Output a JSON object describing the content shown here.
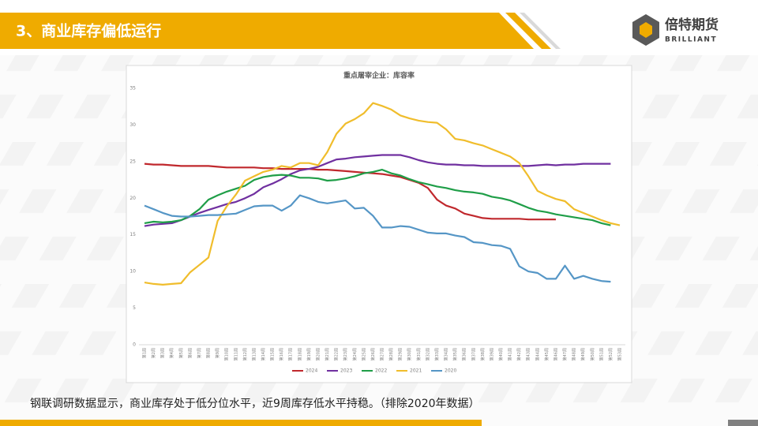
{
  "header": {
    "title": "3、商业库存偏低运行"
  },
  "logo": {
    "name": "倍特期货",
    "en": "BRILLIANT"
  },
  "caption": "钢联调研数据显示，商业库存处于低分位水平，近9周库存低水平持稳。（排除2020年数据）",
  "chart_data": {
    "type": "line",
    "title": "重点屠宰企业：库容率",
    "categories": [
      "第1周",
      "第2周",
      "第3周",
      "第4周",
      "第5周",
      "第6周",
      "第7周",
      "第8周",
      "第9周",
      "第10周",
      "第11周",
      "第12周",
      "第13周",
      "第14周",
      "第15周",
      "第16周",
      "第17周",
      "第18周",
      "第19周",
      "第20周",
      "第21周",
      "第22周",
      "第23周",
      "第24周",
      "第25周",
      "第26周",
      "第27周",
      "第28周",
      "第29周",
      "第30周",
      "第31周",
      "第32周",
      "第33周",
      "第34周",
      "第35周",
      "第36周",
      "第37周",
      "第38周",
      "第39周",
      "第40周",
      "第41周",
      "第42周",
      "第43周",
      "第44周",
      "第45周",
      "第46周",
      "第47周",
      "第48周",
      "第49周",
      "第50周",
      "第51周",
      "第52周",
      "第53周"
    ],
    "series": [
      {
        "name": "2024",
        "color": "#c0282d",
        "values": [
          24.7,
          24.6,
          24.6,
          24.5,
          24.4,
          24.4,
          24.4,
          24.4,
          24.3,
          24.2,
          24.2,
          24.2,
          24.2,
          24.1,
          24.1,
          24.0,
          24.0,
          24.0,
          24.0,
          23.9,
          23.9,
          23.8,
          23.7,
          23.6,
          23.5,
          23.4,
          23.3,
          23.1,
          22.9,
          22.5,
          22.1,
          21.4,
          19.8,
          19.0,
          18.6,
          17.9,
          17.6,
          17.3,
          17.2,
          17.2,
          17.2,
          17.2,
          17.1,
          17.1,
          17.1,
          17.1,
          null,
          null,
          null,
          null,
          null,
          null,
          null
        ]
      },
      {
        "name": "2023",
        "color": "#7030a0",
        "values": [
          16.2,
          16.4,
          16.5,
          16.6,
          17.0,
          17.5,
          18.0,
          18.4,
          18.8,
          19.2,
          19.5,
          20.0,
          20.6,
          21.5,
          22.0,
          22.6,
          23.3,
          23.8,
          24.0,
          24.3,
          24.8,
          25.3,
          25.4,
          25.6,
          25.7,
          25.8,
          25.9,
          25.9,
          25.9,
          25.6,
          25.2,
          24.9,
          24.7,
          24.6,
          24.6,
          24.5,
          24.5,
          24.4,
          24.4,
          24.4,
          24.4,
          24.4,
          24.4,
          24.5,
          24.6,
          24.5,
          24.6,
          24.6,
          24.7,
          24.7,
          24.7,
          24.7,
          null
        ]
      },
      {
        "name": "2022",
        "color": "#1f9e48",
        "values": [
          16.6,
          16.8,
          16.7,
          16.8,
          17.0,
          17.6,
          18.5,
          19.8,
          20.4,
          20.9,
          21.3,
          21.7,
          22.5,
          22.9,
          23.1,
          23.2,
          23.1,
          22.8,
          22.8,
          22.7,
          22.4,
          22.5,
          22.7,
          23.0,
          23.4,
          23.6,
          23.9,
          23.4,
          23.1,
          22.6,
          22.2,
          21.9,
          21.6,
          21.4,
          21.1,
          20.9,
          20.8,
          20.6,
          20.2,
          20.0,
          19.7,
          19.2,
          18.7,
          18.3,
          18.1,
          17.8,
          17.6,
          17.4,
          17.2,
          17.0,
          16.6,
          16.3,
          null
        ]
      },
      {
        "name": "2021",
        "color": "#f0bd2c",
        "values": [
          8.5,
          8.3,
          8.2,
          8.3,
          8.4,
          9.9,
          10.9,
          11.9,
          16.9,
          18.9,
          20.5,
          22.4,
          23.0,
          23.6,
          23.9,
          24.4,
          24.2,
          24.8,
          24.8,
          24.5,
          26.3,
          28.8,
          30.2,
          30.8,
          31.6,
          33.0,
          32.6,
          32.1,
          31.3,
          30.9,
          30.6,
          30.4,
          30.3,
          29.4,
          28.1,
          27.9,
          27.5,
          27.2,
          26.7,
          26.2,
          25.7,
          24.8,
          23.0,
          21.0,
          20.4,
          19.9,
          19.6,
          18.5,
          18.0,
          17.5,
          17.0,
          16.6,
          16.3
        ]
      },
      {
        "name": "2020",
        "color": "#5596c6",
        "values": [
          19.0,
          18.5,
          18.0,
          17.6,
          17.5,
          17.5,
          17.6,
          17.7,
          17.7,
          17.8,
          17.9,
          18.4,
          18.9,
          19.0,
          19.0,
          18.3,
          19.0,
          20.4,
          20.0,
          19.5,
          19.3,
          19.5,
          19.7,
          18.6,
          18.7,
          17.6,
          16.0,
          16.0,
          16.2,
          16.1,
          15.7,
          15.3,
          15.2,
          15.2,
          14.9,
          14.7,
          14.0,
          13.9,
          13.6,
          13.5,
          13.1,
          10.7,
          10.0,
          9.8,
          9.0,
          9.0,
          10.8,
          9.0,
          9.4,
          9.0,
          8.7,
          8.6,
          null
        ]
      }
    ],
    "ylim": [
      0,
      35
    ],
    "yticks": [
      0,
      5,
      10,
      15,
      20,
      25,
      30,
      35
    ],
    "grid": false,
    "legend": "bottom"
  }
}
